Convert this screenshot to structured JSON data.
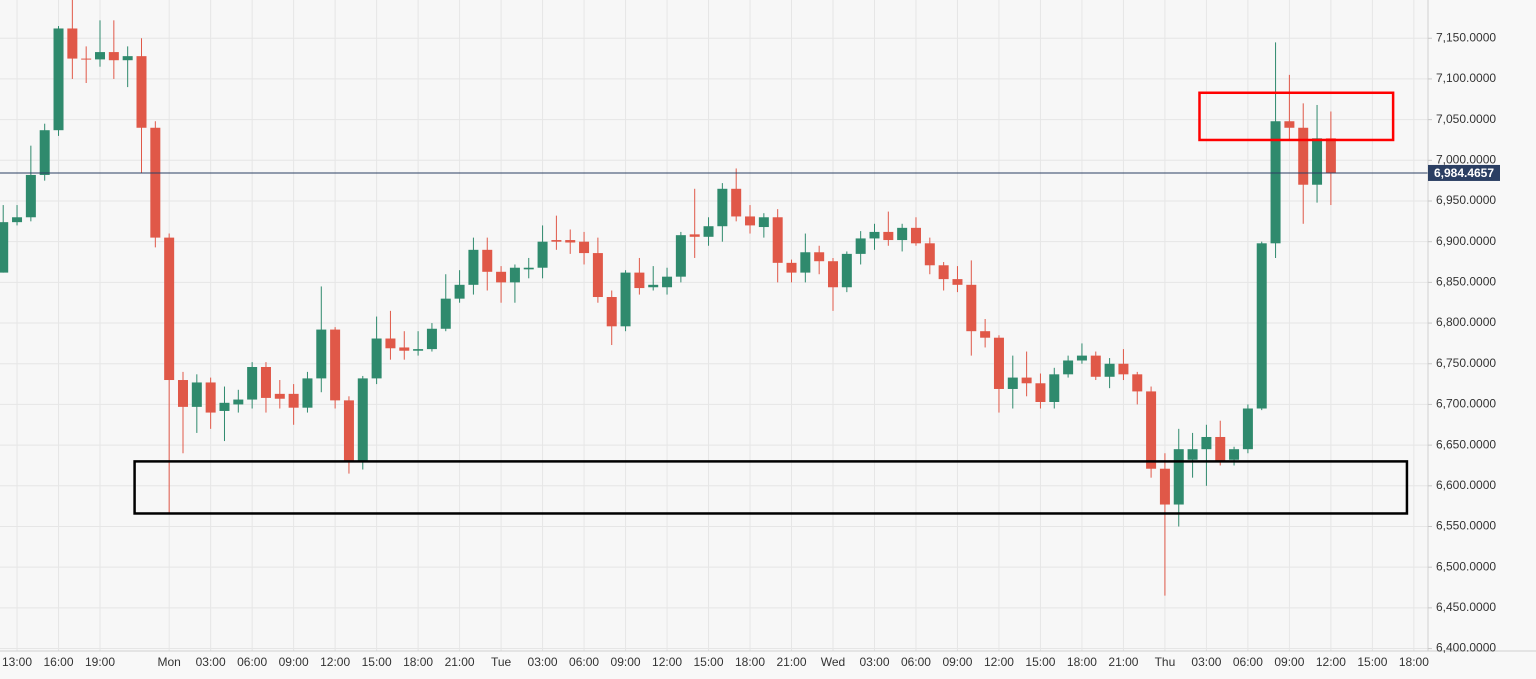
{
  "chart_data": {
    "type": "candlestick",
    "categories": [
      null,
      "13:00",
      null,
      null,
      "16:00",
      null,
      null,
      "19:00",
      null,
      null,
      null,
      null,
      "Mon",
      null,
      null,
      "03:00",
      null,
      null,
      "06:00",
      null,
      null,
      "09:00",
      null,
      null,
      "12:00",
      null,
      null,
      "15:00",
      null,
      null,
      "18:00",
      null,
      null,
      "21:00",
      null,
      null,
      "Tue",
      null,
      null,
      "03:00",
      null,
      null,
      "06:00",
      null,
      null,
      "09:00",
      null,
      null,
      "12:00",
      null,
      null,
      "15:00",
      null,
      null,
      "18:00",
      null,
      null,
      "21:00",
      null,
      null,
      "Wed",
      null,
      null,
      "03:00",
      null,
      null,
      "06:00",
      null,
      null,
      "09:00",
      null,
      null,
      "12:00",
      null,
      null,
      "15:00",
      null,
      null,
      "18:00",
      null,
      null,
      "21:00",
      null,
      null,
      "Thu",
      null,
      null,
      "03:00",
      null,
      null,
      "06:00",
      null,
      null,
      "09:00",
      null,
      null,
      "12:00",
      null,
      null,
      "15:00",
      null,
      null,
      "18:00"
    ],
    "open": [
      6862,
      6924,
      6930,
      6982,
      7037,
      7162,
      7125,
      7124,
      7133,
      7123,
      7128,
      7040,
      6905,
      6730,
      6697,
      6727,
      6692,
      6700,
      6706,
      6746,
      6713,
      6713,
      6696,
      6732,
      6792,
      6705,
      6629,
      6732,
      6781,
      6770,
      6766,
      6768,
      6793,
      6830,
      6847,
      6890,
      6863,
      6850,
      6866,
      6868,
      6902,
      6902,
      6900,
      6886,
      6832,
      6796,
      6862,
      6844,
      6844,
      6857,
      6909,
      6906,
      6919,
      6965,
      6931,
      6918,
      6930,
      6874,
      6862,
      6887,
      6876,
      6844,
      6885,
      6904,
      6912,
      6902,
      6917,
      6898,
      6871,
      6854,
      6847,
      6790,
      6782,
      6719,
      6733,
      6726,
      6703,
      6737,
      6754,
      6760,
      6734,
      6750,
      6737,
      6716,
      6621,
      6577,
      6632,
      6645,
      6660,
      6632,
      6645,
      6695,
      6898,
      7048,
      7040,
      6970,
      7027,
      null,
      null,
      null,
      null,
      null,
      null
    ],
    "high": [
      6945,
      6945,
      7018,
      7045,
      7165,
      7197,
      7140,
      7172,
      7172,
      7140,
      7150,
      7048,
      6910,
      6740,
      6737,
      6733,
      6722,
      6718,
      6752,
      6752,
      6730,
      6725,
      6740,
      6845,
      6795,
      6710,
      6735,
      6808,
      6815,
      6790,
      6790,
      6800,
      6860,
      6865,
      6905,
      6905,
      6870,
      6872,
      6880,
      6920,
      6932,
      6915,
      6912,
      6905,
      6840,
      6865,
      6880,
      6870,
      6868,
      6912,
      6965,
      6930,
      6972,
      6990,
      6945,
      6935,
      6940,
      6878,
      6910,
      6895,
      6880,
      6888,
      6913,
      6922,
      6937,
      6922,
      6930,
      6905,
      6875,
      6870,
      6877,
      6805,
      6785,
      6760,
      6765,
      6738,
      6745,
      6760,
      6775,
      6765,
      6757,
      6768,
      6740,
      6722,
      6640,
      6670,
      6665,
      6675,
      6680,
      6648,
      6700,
      6900,
      7145,
      7105,
      7070,
      7068,
      7060,
      null,
      null,
      null,
      null,
      null,
      null
    ],
    "low": [
      6862,
      6920,
      6925,
      6975,
      7030,
      7100,
      7095,
      7115,
      7100,
      7090,
      6985,
      6893,
      6565,
      6640,
      6665,
      6670,
      6655,
      6690,
      6695,
      6690,
      6695,
      6675,
      6690,
      6715,
      6695,
      6615,
      6620,
      6725,
      6755,
      6755,
      6760,
      6765,
      6790,
      6825,
      6835,
      6840,
      6825,
      6825,
      6855,
      6855,
      6890,
      6885,
      6872,
      6825,
      6773,
      6790,
      6835,
      6840,
      6835,
      6850,
      6880,
      6895,
      6900,
      6925,
      6910,
      6905,
      6850,
      6850,
      6850,
      6860,
      6815,
      6838,
      6872,
      6890,
      6895,
      6888,
      6895,
      6860,
      6840,
      6838,
      6760,
      6770,
      6690,
      6695,
      6710,
      6695,
      6695,
      6733,
      6750,
      6730,
      6720,
      6730,
      6700,
      6610,
      6465,
      6550,
      6610,
      6600,
      6625,
      6625,
      6640,
      6693,
      6880,
      7025,
      6922,
      6948,
      6945,
      null,
      null,
      null,
      null,
      null,
      null
    ],
    "close": [
      6924,
      6930,
      6982,
      7037,
      7162,
      7125,
      7124,
      7133,
      7123,
      7128,
      7040,
      6905,
      6730,
      6697,
      6727,
      6690,
      6702,
      6706,
      6746,
      6708,
      6707,
      6696,
      6732,
      6792,
      6705,
      6629,
      6732,
      6781,
      6769,
      6766,
      6768,
      6793,
      6830,
      6847,
      6890,
      6863,
      6850,
      6868,
      6868,
      6900,
      6900,
      6899,
      6886,
      6832,
      6796,
      6862,
      6843,
      6847,
      6857,
      6908,
      6906,
      6919,
      6965,
      6931,
      6920,
      6930,
      6874,
      6862,
      6887,
      6876,
      6844,
      6885,
      6904,
      6912,
      6902,
      6917,
      6898,
      6871,
      6854,
      6847,
      6790,
      6782,
      6719,
      6733,
      6726,
      6703,
      6737,
      6754,
      6760,
      6734,
      6750,
      6737,
      6716,
      6621,
      6577,
      6645,
      6645,
      6660,
      6630,
      6645,
      6695,
      6898,
      7048,
      7040,
      6970,
      7027,
      6984.4657,
      null,
      null,
      null,
      null,
      null,
      null
    ],
    "up_color": "#2f8a6d",
    "down_color": "#e05848",
    "ylim": [
      6397,
      7197
    ],
    "yticks": [
      {
        "value": 6400,
        "label": "6,400.0000"
      },
      {
        "value": 6450,
        "label": "6,450.0000"
      },
      {
        "value": 6500,
        "label": "6,500.0000"
      },
      {
        "value": 6550,
        "label": "6,550.0000"
      },
      {
        "value": 6600,
        "label": "6,600.0000"
      },
      {
        "value": 6650,
        "label": "6,650.0000"
      },
      {
        "value": 6700,
        "label": "6,700.0000"
      },
      {
        "value": 6750,
        "label": "6,750.0000"
      },
      {
        "value": 6800,
        "label": "6,800.0000"
      },
      {
        "value": 6850,
        "label": "6,850.0000"
      },
      {
        "value": 6900,
        "label": "6,900.0000"
      },
      {
        "value": 6950,
        "label": "6,950.0000"
      },
      {
        "value": 7000,
        "label": "7,000.0000"
      },
      {
        "value": 7050,
        "label": "7,050.0000"
      },
      {
        "value": 7100,
        "label": "7,100.0000"
      },
      {
        "value": 7150,
        "label": "7,150.0000"
      }
    ],
    "grid": true,
    "current_price": {
      "value": 6984.4657,
      "label": "6,984.4657",
      "color": "#2b3f63"
    },
    "annotations": [
      {
        "shape": "rectangle",
        "color": "#000000",
        "x0": 10,
        "x1": 102,
        "y0": 6566,
        "y1": 6630
      },
      {
        "shape": "rectangle",
        "color": "#ff0000",
        "x0": 87,
        "x1": 101,
        "y0": 7025,
        "y1": 7083
      }
    ]
  }
}
